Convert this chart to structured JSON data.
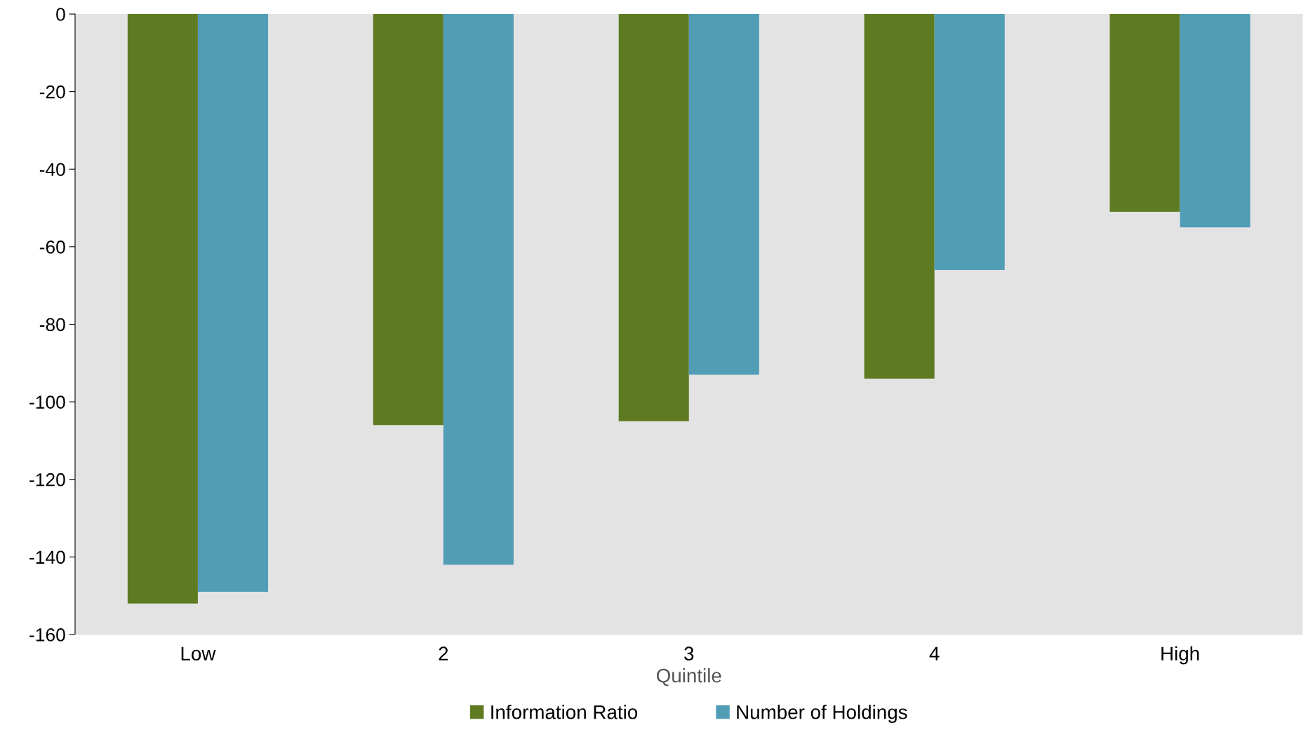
{
  "chart_data": {
    "type": "bar",
    "xlabel": "Quintile",
    "categories": [
      "Low",
      "2",
      "3",
      "4",
      "High"
    ],
    "series": [
      {
        "name": "Information Ratio",
        "color": "#5e7b22",
        "values": [
          -152,
          -106,
          -105,
          -94,
          -51
        ]
      },
      {
        "name": "Number of Holdings",
        "color": "#529db6",
        "values": [
          -149,
          -142,
          -93,
          -66,
          -55
        ]
      }
    ],
    "ylim": [
      -160,
      0
    ],
    "yticks": [
      -160,
      -140,
      -120,
      -100,
      -80,
      -60,
      -40,
      -20,
      0
    ],
    "grid": false,
    "legend": "bottom"
  }
}
